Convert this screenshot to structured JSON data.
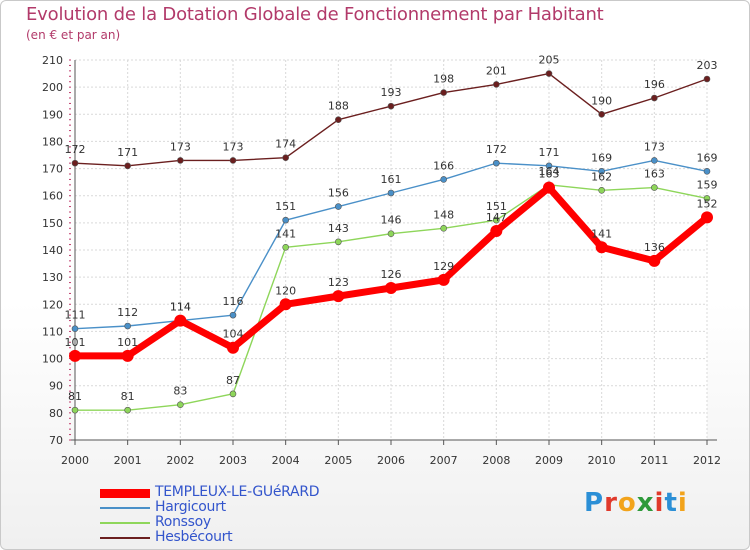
{
  "title": "Evolution de la Dotation Globale de Fonctionnement par Habitant",
  "subtitle": "(en € et par an)",
  "logo": {
    "text": "Proxiti",
    "letters": [
      "P",
      "r",
      "o",
      "x",
      "i",
      "t",
      "i"
    ],
    "colors": [
      "#2b8fd6",
      "#e0392b",
      "#f2a31b",
      "#2e9a3a",
      "#e0392b",
      "#2b8fd6",
      "#f2a31b"
    ]
  },
  "chart_data": {
    "type": "line",
    "title": "Evolution de la Dotation Globale de Fonctionnement par Habitant",
    "subtitle": "(en € et par an)",
    "xlabel": "",
    "ylabel": "",
    "ylim": [
      70,
      210
    ],
    "yticks": [
      70,
      80,
      90,
      100,
      110,
      120,
      130,
      140,
      150,
      160,
      170,
      180,
      190,
      200,
      210
    ],
    "categories": [
      "2000",
      "2001",
      "2002",
      "2003",
      "2004",
      "2005",
      "2006",
      "2007",
      "2008",
      "2009",
      "2010",
      "2011",
      "2012"
    ],
    "grid": true,
    "legend_position": "bottom-left",
    "series": [
      {
        "name": "Hesbécourt",
        "color": "#6b1f1f",
        "values": [
          172,
          171,
          173,
          173,
          174,
          188,
          193,
          198,
          201,
          205,
          190,
          196,
          203
        ]
      },
      {
        "name": "Hargicourt",
        "color": "#4a90c8",
        "values": [
          111,
          112,
          114,
          116,
          151,
          156,
          161,
          166,
          172,
          171,
          169,
          173,
          169
        ]
      },
      {
        "name": "Ronssoy",
        "color": "#8ed65a",
        "values": [
          81,
          81,
          83,
          87,
          141,
          143,
          146,
          148,
          151,
          164,
          162,
          163,
          159
        ]
      },
      {
        "name": "TEMPLEUX-LE-GUéRARD",
        "color": "#ff0000",
        "values": [
          101,
          101,
          114,
          104,
          120,
          123,
          126,
          129,
          147,
          163,
          141,
          136,
          152
        ]
      }
    ],
    "legend_order": [
      "TEMPLEUX-LE-GUéRARD",
      "Hargicourt",
      "Ronssoy",
      "Hesbécourt"
    ]
  }
}
